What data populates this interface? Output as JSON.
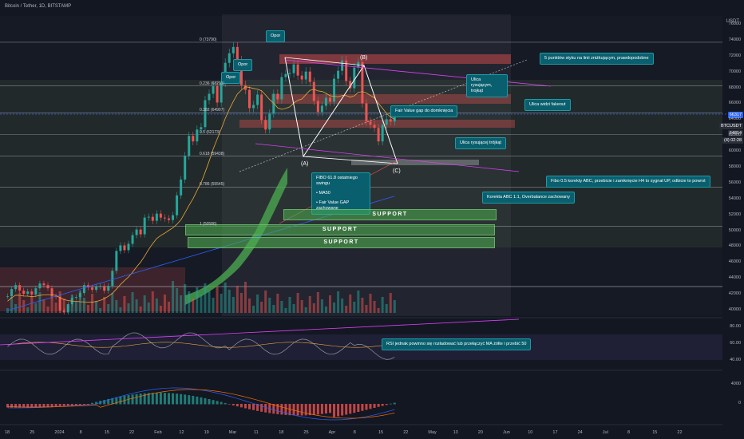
{
  "header": {
    "symbol": "Bitcoin / Tether, 1D, BITSTAMP"
  },
  "axis_unit": "USDT",
  "price_tags": {
    "blue": "66317",
    "symbol_label": "BTCUSDT",
    "last_price": "64814",
    "change": "(4) 02:28"
  },
  "chart_data": {
    "type": "candlestick",
    "title": "Bitcoin / Tether, 1D, BITSTAMP",
    "y_ticks": [
      "76000",
      "74000",
      "72000",
      "70000",
      "68000",
      "66000",
      "64000",
      "62000",
      "60000",
      "58000",
      "56000",
      "54000",
      "52000",
      "50000",
      "48000",
      "46000",
      "44000",
      "42000",
      "40000"
    ],
    "x_ticks": [
      "18",
      "25",
      "2024",
      "8",
      "15",
      "22",
      "Feb",
      "12",
      "19",
      "Mar",
      "11",
      "18",
      "25",
      "Apr",
      "8",
      "15",
      "22",
      "May",
      "13",
      "20",
      "Jun",
      "10",
      "17",
      "24",
      "Jul",
      "8",
      "15",
      "22"
    ],
    "rsi_ticks": [
      "80.00",
      "60.00",
      "40.00"
    ],
    "macd_ticks": [
      "4000",
      "0"
    ],
    "fib_levels": [
      {
        "label": "0 (73790)",
        "value": 73790
      },
      {
        "label": "0.236 (68291)",
        "value": 68291
      },
      {
        "label": "0.382 (64907)",
        "value": 64907
      },
      {
        "label": "0.5 (62173)",
        "value": 62173
      },
      {
        "label": "0.618 (59438)",
        "value": 59438
      },
      {
        "label": "0.786 (55545)",
        "value": 55545
      },
      {
        "label": "1 (50586)",
        "value": 50586
      }
    ],
    "wave_labels": [
      "(B)",
      "(A)",
      "(C)"
    ],
    "support_labels": [
      "SUPPORT",
      "SUPPORT",
      "SUPPORT"
    ],
    "approx_close": [
      41800,
      42700,
      43200,
      42500,
      42100,
      42400,
      42000,
      42800,
      43400,
      43200,
      42800,
      41800,
      41700,
      40000,
      39800,
      40800,
      41600,
      41700,
      42200,
      43200,
      42900,
      42600,
      43000,
      43100,
      42500,
      43100,
      45000,
      47500,
      48200,
      47600,
      48400,
      49500,
      50200,
      49600,
      51700,
      51800,
      51300,
      52200,
      51700,
      51600,
      51400,
      52000,
      54500,
      56500,
      59500,
      62000,
      61300,
      62800,
      63100,
      66500,
      67300,
      68300,
      66200,
      68700,
      71200,
      72400,
      73200,
      71500,
      68400,
      67800,
      65500,
      65900,
      67200,
      64000,
      62800,
      64800,
      67300,
      66600,
      69400,
      69800,
      69900,
      71000,
      69600,
      69100,
      70100,
      68800,
      66400,
      65000,
      65800,
      66800,
      66300,
      69200,
      70200,
      71500,
      68900,
      68000,
      70600,
      71300,
      66100,
      63800,
      63400,
      63000,
      61300,
      63400,
      64100,
      63800,
      64800
    ],
    "rsi_level_line": 70
  },
  "annotations": {
    "opor_1": "Opor",
    "opor_2": "Opor",
    "opor_3": "Opor",
    "top_right": "5 punktów styku na linii zniżkującym, prawdopodobne",
    "ulica_1": "Ulica rysującym, trojkąt",
    "fvg": "Fair Value gap do domknięcia",
    "ulica_widzi": "Ulica widzi fakeout",
    "ulica_2": "Ulica rysującej trójkąt",
    "fibo_abc": "Fibo 0.5 korekty ABC, przebicie i zamknięcie H4 to sygnał UP, odbicie to powrot",
    "korekta": "Korekta ABC 1:1, Overbalance zachowany",
    "fibo_list_title": "FIBO 61.8 ostatniego swingu",
    "fibo_list_item1": "• MA50",
    "fibo_list_item2": "• Fair Value GAP zachowane",
    "rsi_note": "RSI jednak powinno się rozładować lub przełączyć MA żółte i przebić 50"
  },
  "colors": {
    "background": "#131722",
    "up": "#26a69a",
    "down": "#ef5350",
    "note_bg": "#0a5f6e",
    "support": "#4caf50",
    "price_tag_blue": "#2962ff",
    "rsi_line": "#9598a1",
    "magenta": "#e040fb"
  }
}
